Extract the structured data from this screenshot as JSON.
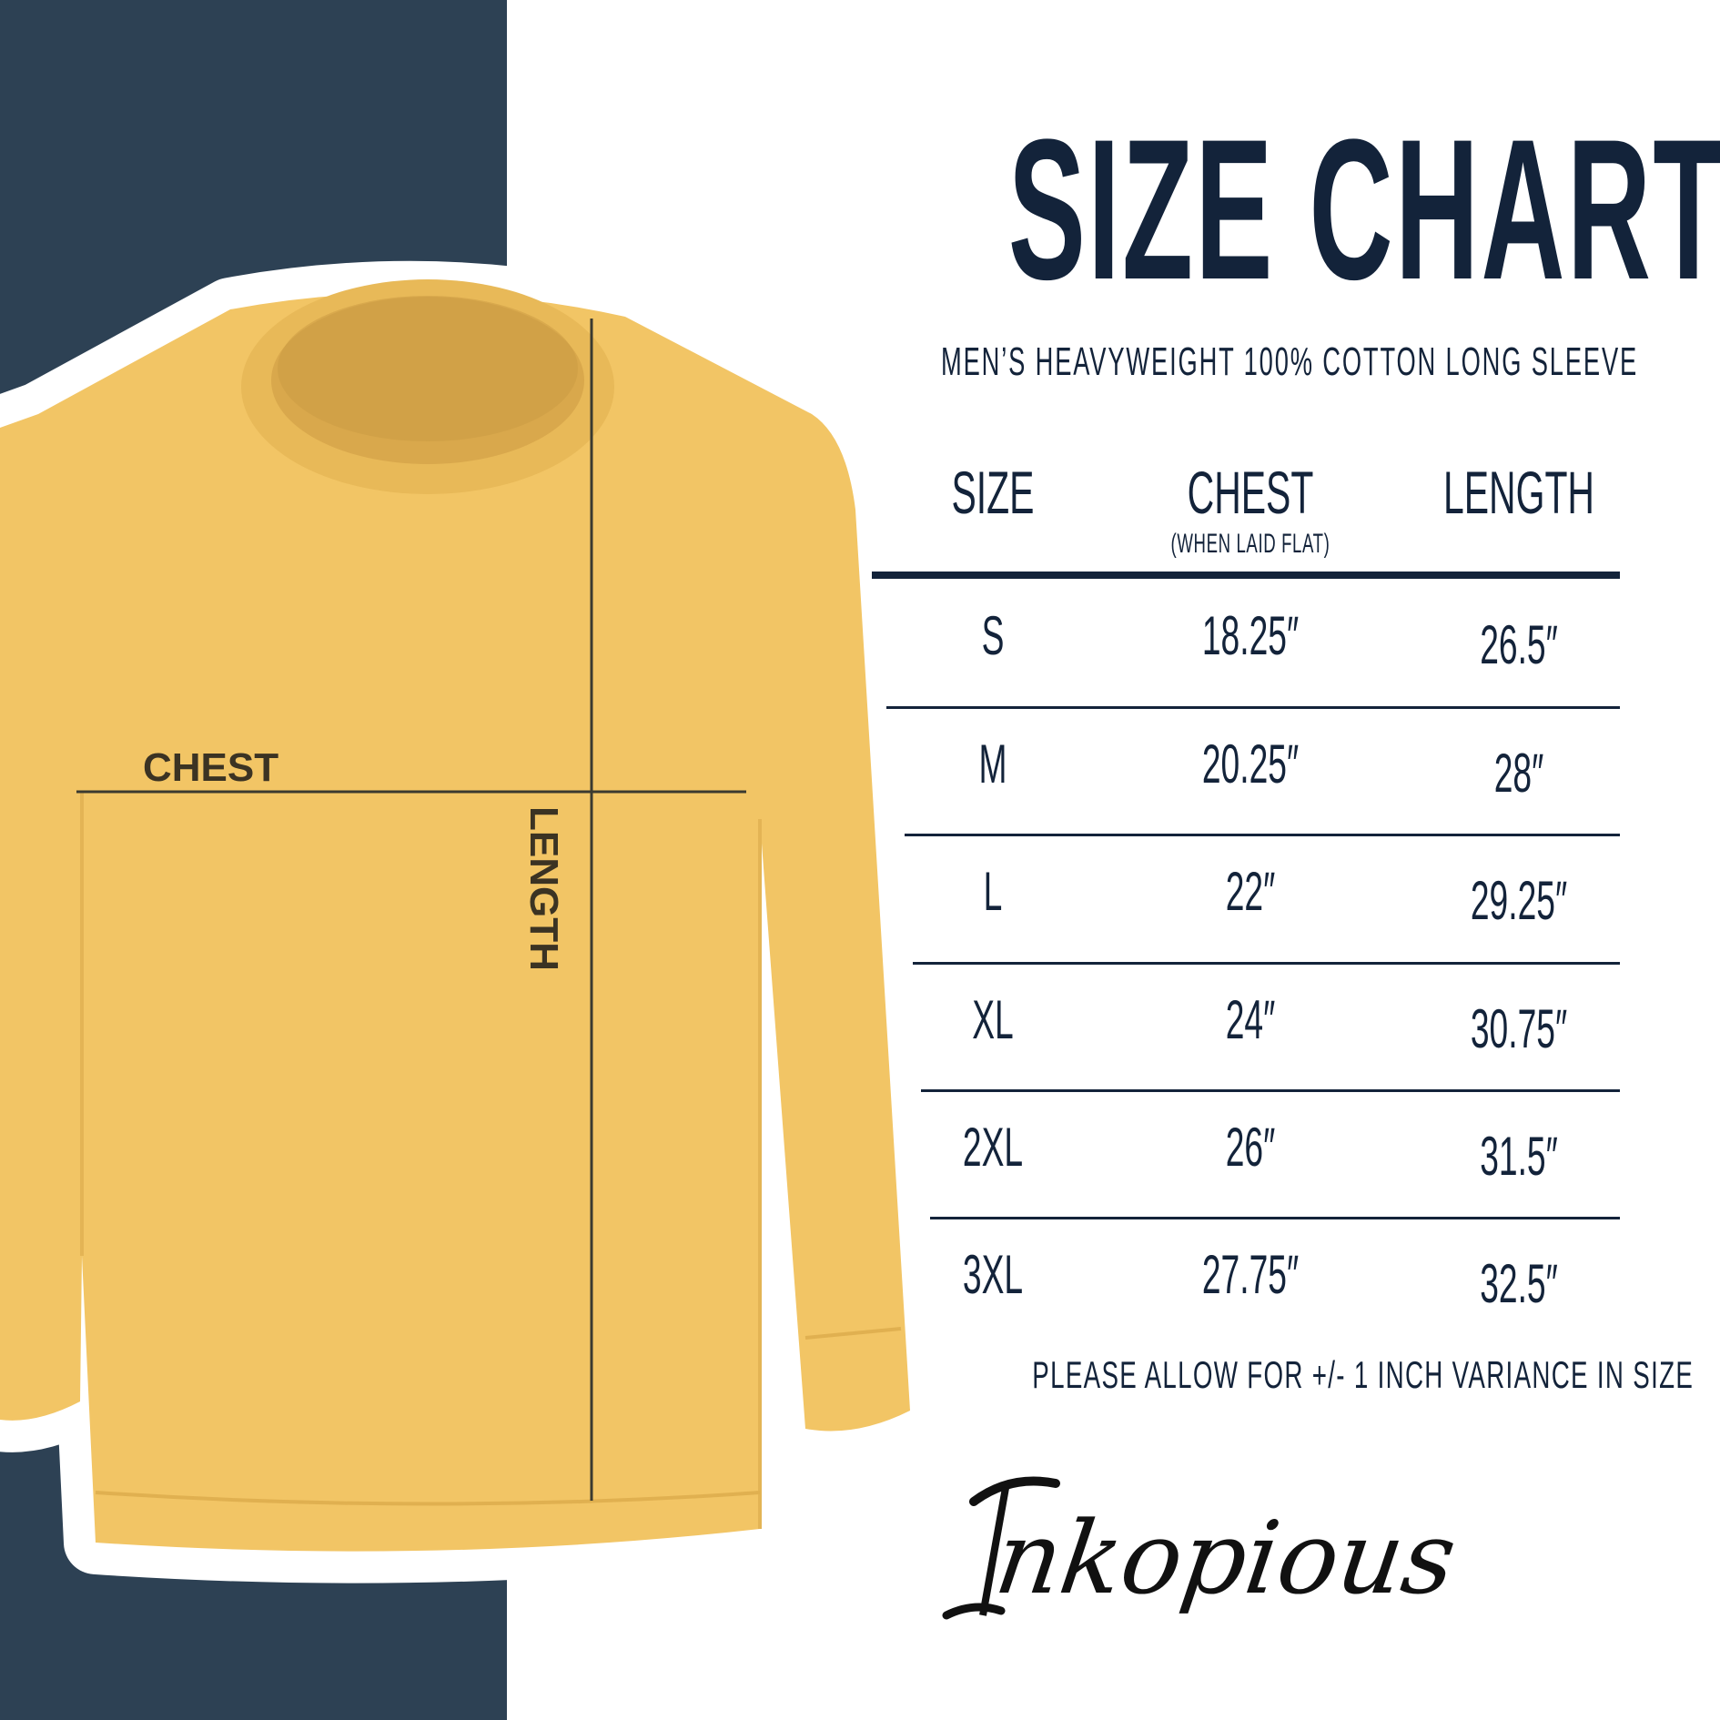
{
  "title": "SIZE CHART",
  "subtitle": "MEN’S HEAVYWEIGHT 100% COTTON LONG SLEEVE",
  "table": {
    "headers": [
      {
        "label": "SIZE",
        "sub": ""
      },
      {
        "label": "CHEST",
        "sub": "(WHEN LAID FLAT)"
      },
      {
        "label": "LENGTH",
        "sub": ""
      }
    ],
    "rows": [
      {
        "size": "S",
        "chest": "18.25″",
        "length": "26.5″"
      },
      {
        "size": "M",
        "chest": "20.25″",
        "length": "28″"
      },
      {
        "size": "L",
        "chest": "22″",
        "length": "29.25″"
      },
      {
        "size": "XL",
        "chest": "24″",
        "length": "30.75″"
      },
      {
        "size": "2XL",
        "chest": "26″",
        "length": "31.5″"
      },
      {
        "size": "3XL",
        "chest": "27.75″",
        "length": "32.5″"
      }
    ]
  },
  "footer": "PLEASE ALLOW FOR +/- 1 INCH VARIANCE IN SIZE",
  "shirt_labels": {
    "chest": "CHEST",
    "length": "LENGTH"
  },
  "brand": {
    "logo_text": "Inkopious"
  },
  "colors": {
    "navy_panel": "#2d4154",
    "shirt": "#f2c565",
    "text": "#13233a"
  }
}
